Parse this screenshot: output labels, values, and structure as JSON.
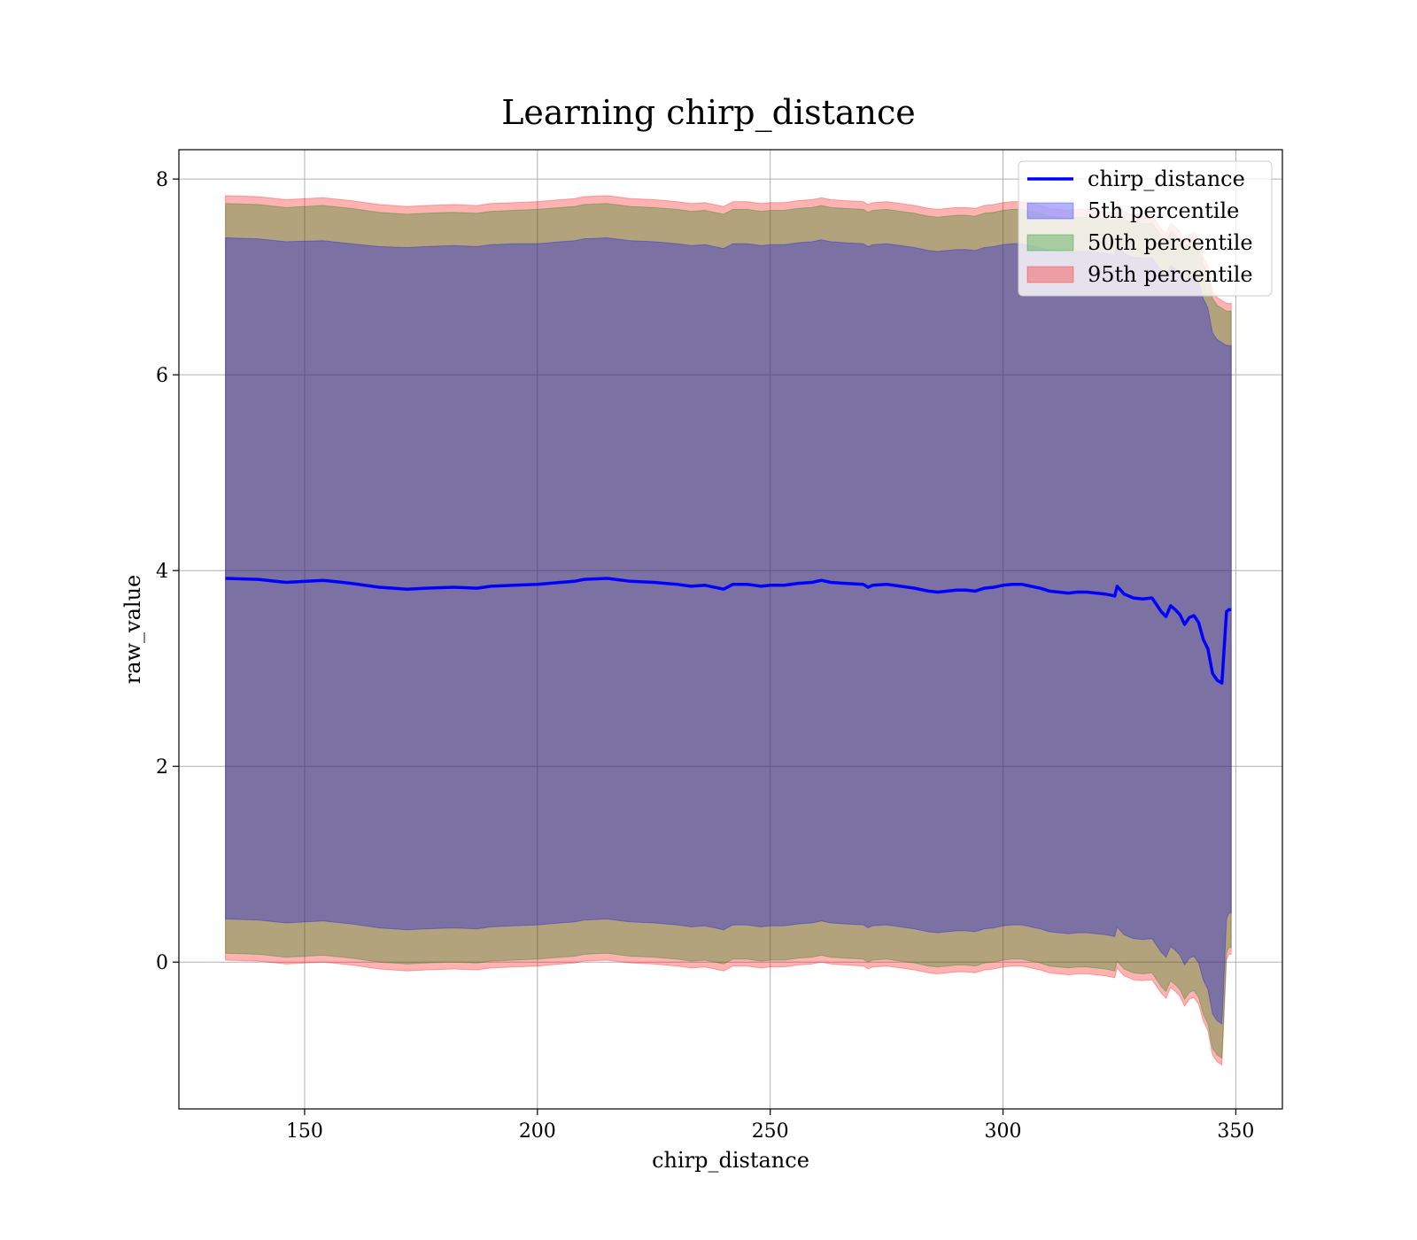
{
  "chart_data": {
    "type": "area",
    "title": "Learning chirp_distance",
    "xlabel": "chirp_distance",
    "ylabel": "raw_value",
    "xlim": [
      123,
      360
    ],
    "ylim": [
      -1.5,
      8.3
    ],
    "xticks": [
      150,
      200,
      250,
      300,
      350
    ],
    "yticks": [
      0,
      2,
      4,
      6,
      8
    ],
    "grid": true,
    "legend_position": "top-right",
    "colors": {
      "line": "#0000ff",
      "p5": "#0000ff",
      "p50": "#008000",
      "p95": "#ff0000"
    },
    "legend": [
      {
        "label": "chirp_distance",
        "kind": "line",
        "color": "#0000ff"
      },
      {
        "label": "5th percentile",
        "kind": "band",
        "color": "#0000ff"
      },
      {
        "label": "50th percentile",
        "kind": "band",
        "color": "#008000"
      },
      {
        "label": "95th percentile",
        "kind": "band",
        "color": "#ff0000"
      }
    ],
    "x": [
      133,
      140,
      146,
      154,
      160,
      166,
      172,
      176,
      182,
      187,
      190,
      195,
      200,
      205,
      208,
      210,
      215,
      220,
      225,
      230,
      233,
      236,
      240,
      242,
      245,
      248,
      250,
      253,
      256,
      259,
      261,
      263,
      266,
      270,
      271,
      272,
      275,
      278,
      281,
      284,
      286,
      288,
      290,
      292,
      294,
      296,
      298,
      300,
      302,
      304,
      306,
      308,
      310,
      312,
      314,
      316,
      318,
      320,
      322,
      324,
      324.5,
      326,
      328,
      330,
      332,
      334,
      335,
      336,
      337,
      338,
      339,
      340,
      341,
      342,
      343,
      344,
      345,
      346,
      347,
      348,
      348.5,
      349
    ],
    "series": [
      {
        "name": "chirp_distance",
        "kind": "line",
        "values": [
          3.92,
          3.91,
          3.88,
          3.9,
          3.87,
          3.83,
          3.81,
          3.82,
          3.83,
          3.82,
          3.84,
          3.85,
          3.86,
          3.88,
          3.89,
          3.91,
          3.92,
          3.89,
          3.88,
          3.86,
          3.84,
          3.85,
          3.81,
          3.86,
          3.86,
          3.84,
          3.85,
          3.85,
          3.87,
          3.88,
          3.9,
          3.88,
          3.87,
          3.86,
          3.83,
          3.85,
          3.86,
          3.84,
          3.82,
          3.79,
          3.78,
          3.79,
          3.8,
          3.8,
          3.79,
          3.82,
          3.83,
          3.85,
          3.86,
          3.86,
          3.84,
          3.82,
          3.79,
          3.78,
          3.77,
          3.78,
          3.78,
          3.77,
          3.76,
          3.74,
          3.84,
          3.76,
          3.72,
          3.71,
          3.72,
          3.58,
          3.53,
          3.64,
          3.6,
          3.55,
          3.45,
          3.52,
          3.54,
          3.47,
          3.3,
          3.2,
          2.95,
          2.88,
          2.85,
          3.58,
          3.6,
          3.6
        ]
      },
      {
        "name": "5th percentile",
        "kind": "band",
        "upper": [
          7.4,
          7.39,
          7.36,
          7.37,
          7.34,
          7.31,
          7.3,
          7.31,
          7.32,
          7.31,
          7.33,
          7.34,
          7.34,
          7.36,
          7.37,
          7.39,
          7.4,
          7.37,
          7.36,
          7.34,
          7.32,
          7.33,
          7.29,
          7.34,
          7.34,
          7.32,
          7.33,
          7.33,
          7.35,
          7.36,
          7.38,
          7.36,
          7.35,
          7.34,
          7.31,
          7.33,
          7.34,
          7.32,
          7.3,
          7.27,
          7.26,
          7.27,
          7.28,
          7.28,
          7.27,
          7.3,
          7.31,
          7.33,
          7.34,
          7.34,
          7.32,
          7.3,
          7.27,
          7.26,
          7.25,
          7.26,
          7.26,
          7.25,
          7.24,
          7.22,
          7.32,
          7.24,
          7.2,
          7.19,
          7.2,
          7.06,
          7.01,
          7.12,
          7.08,
          7.03,
          6.93,
          7.0,
          7.02,
          6.95,
          6.78,
          6.68,
          6.43,
          6.36,
          6.33,
          6.3,
          6.3,
          6.3
        ],
        "lower": [
          0.44,
          0.43,
          0.4,
          0.42,
          0.39,
          0.35,
          0.33,
          0.34,
          0.35,
          0.34,
          0.36,
          0.37,
          0.38,
          0.4,
          0.41,
          0.43,
          0.44,
          0.41,
          0.4,
          0.38,
          0.36,
          0.37,
          0.33,
          0.38,
          0.38,
          0.36,
          0.37,
          0.37,
          0.39,
          0.4,
          0.42,
          0.4,
          0.39,
          0.38,
          0.35,
          0.37,
          0.38,
          0.36,
          0.34,
          0.31,
          0.3,
          0.31,
          0.32,
          0.32,
          0.31,
          0.34,
          0.35,
          0.37,
          0.38,
          0.38,
          0.36,
          0.34,
          0.31,
          0.3,
          0.29,
          0.3,
          0.3,
          0.29,
          0.28,
          0.26,
          0.36,
          0.28,
          0.24,
          0.23,
          0.24,
          0.1,
          0.05,
          0.16,
          0.12,
          0.07,
          -0.03,
          0.04,
          0.06,
          -0.01,
          -0.18,
          -0.28,
          -0.53,
          -0.6,
          -0.63,
          0.44,
          0.5,
          0.5
        ]
      },
      {
        "name": "50th percentile",
        "kind": "band",
        "upper": [
          7.75,
          7.74,
          7.71,
          7.73,
          7.7,
          7.66,
          7.64,
          7.65,
          7.66,
          7.65,
          7.67,
          7.68,
          7.69,
          7.71,
          7.72,
          7.74,
          7.75,
          7.72,
          7.71,
          7.69,
          7.67,
          7.68,
          7.64,
          7.69,
          7.69,
          7.67,
          7.68,
          7.68,
          7.7,
          7.71,
          7.73,
          7.71,
          7.7,
          7.69,
          7.66,
          7.68,
          7.69,
          7.67,
          7.65,
          7.62,
          7.61,
          7.62,
          7.63,
          7.63,
          7.62,
          7.65,
          7.66,
          7.68,
          7.69,
          7.69,
          7.67,
          7.65,
          7.62,
          7.61,
          7.6,
          7.61,
          7.61,
          7.6,
          7.59,
          7.57,
          7.67,
          7.59,
          7.55,
          7.54,
          7.55,
          7.41,
          7.36,
          7.47,
          7.43,
          7.38,
          7.28,
          7.35,
          7.37,
          7.3,
          7.13,
          7.03,
          6.78,
          6.71,
          6.68,
          6.65,
          6.65,
          6.65
        ],
        "lower": [
          0.09,
          0.08,
          0.05,
          0.07,
          0.04,
          0.0,
          -0.02,
          -0.01,
          0.0,
          -0.01,
          0.01,
          0.02,
          0.03,
          0.05,
          0.06,
          0.08,
          0.09,
          0.06,
          0.05,
          0.03,
          0.01,
          0.02,
          -0.02,
          0.03,
          0.03,
          0.01,
          0.02,
          0.02,
          0.04,
          0.05,
          0.07,
          0.05,
          0.04,
          0.03,
          0.0,
          0.02,
          0.03,
          0.01,
          -0.01,
          -0.04,
          -0.05,
          -0.04,
          -0.03,
          -0.03,
          -0.04,
          -0.01,
          0.0,
          0.02,
          0.03,
          0.03,
          0.01,
          -0.01,
          -0.04,
          -0.05,
          -0.06,
          -0.05,
          -0.05,
          -0.06,
          -0.07,
          -0.09,
          0.01,
          -0.07,
          -0.11,
          -0.12,
          -0.11,
          -0.25,
          -0.3,
          -0.19,
          -0.23,
          -0.28,
          -0.38,
          -0.31,
          -0.29,
          -0.36,
          -0.53,
          -0.63,
          -0.88,
          -0.95,
          -0.98,
          0.09,
          0.15,
          0.15
        ]
      },
      {
        "name": "95th percentile",
        "kind": "band",
        "upper": [
          7.83,
          7.82,
          7.79,
          7.81,
          7.78,
          7.74,
          7.72,
          7.73,
          7.74,
          7.73,
          7.75,
          7.76,
          7.77,
          7.79,
          7.8,
          7.82,
          7.83,
          7.8,
          7.79,
          7.77,
          7.75,
          7.76,
          7.72,
          7.77,
          7.77,
          7.75,
          7.76,
          7.76,
          7.78,
          7.79,
          7.81,
          7.79,
          7.78,
          7.77,
          7.74,
          7.76,
          7.77,
          7.75,
          7.73,
          7.7,
          7.69,
          7.7,
          7.71,
          7.71,
          7.7,
          7.73,
          7.74,
          7.76,
          7.77,
          7.77,
          7.75,
          7.73,
          7.7,
          7.69,
          7.68,
          7.69,
          7.69,
          7.68,
          7.67,
          7.65,
          7.75,
          7.67,
          7.63,
          7.62,
          7.63,
          7.49,
          7.44,
          7.55,
          7.51,
          7.46,
          7.36,
          7.43,
          7.45,
          7.38,
          7.21,
          7.11,
          6.86,
          6.79,
          6.76,
          6.73,
          6.73,
          6.73
        ],
        "lower": [
          0.02,
          0.01,
          -0.02,
          0.0,
          -0.03,
          -0.07,
          -0.09,
          -0.08,
          -0.07,
          -0.08,
          -0.06,
          -0.05,
          -0.04,
          -0.02,
          -0.01,
          0.01,
          0.02,
          -0.01,
          -0.02,
          -0.04,
          -0.06,
          -0.05,
          -0.09,
          -0.04,
          -0.04,
          -0.06,
          -0.05,
          -0.05,
          -0.03,
          -0.02,
          0.0,
          -0.02,
          -0.03,
          -0.04,
          -0.07,
          -0.05,
          -0.04,
          -0.06,
          -0.08,
          -0.11,
          -0.12,
          -0.11,
          -0.1,
          -0.1,
          -0.11,
          -0.08,
          -0.07,
          -0.05,
          -0.04,
          -0.04,
          -0.06,
          -0.08,
          -0.11,
          -0.12,
          -0.13,
          -0.12,
          -0.12,
          -0.13,
          -0.14,
          -0.16,
          -0.06,
          -0.14,
          -0.18,
          -0.19,
          -0.18,
          -0.32,
          -0.37,
          -0.26,
          -0.3,
          -0.35,
          -0.45,
          -0.38,
          -0.36,
          -0.43,
          -0.6,
          -0.7,
          -0.95,
          -1.02,
          -1.05,
          0.02,
          0.08,
          0.08
        ]
      }
    ]
  }
}
